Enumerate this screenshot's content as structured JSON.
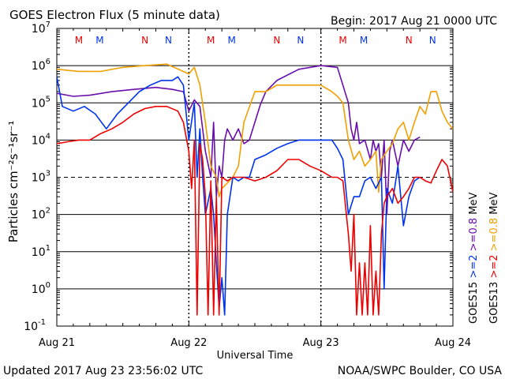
{
  "header": {
    "title": "GOES Electron Flux (5 minute data)",
    "begin": "Begin: 2017 Aug 21 0000 UTC"
  },
  "footer": {
    "updated": "Updated 2017 Aug 23 23:56:02 UTC",
    "credit": "NOAA/SWPC Boulder, CO USA"
  },
  "colors": {
    "goes15_gt08": "#6a0dad",
    "goes13_gt08": "#f0a000",
    "goes15_gt2": "#0033ee",
    "goes13_gt2": "#ee0000",
    "grid": "#000000",
    "mn_red": "#ee0000",
    "mn_blue": "#0033ee"
  },
  "chart_data": {
    "type": "line",
    "title": "GOES Electron Flux (5 minute data)",
    "xlabel": "Universal Time",
    "ylabel": "Particles cm⁻²s⁻¹sr⁻¹",
    "yscale": "log",
    "ylim": [
      0.1,
      10000000
    ],
    "yticks": [
      {
        "label": "10",
        "exp": "7"
      },
      {
        "label": "10",
        "exp": "6"
      },
      {
        "label": "10",
        "exp": "5"
      },
      {
        "label": "10",
        "exp": "4"
      },
      {
        "label": "10",
        "exp": "3"
      },
      {
        "label": "10",
        "exp": "2"
      },
      {
        "label": "10",
        "exp": "1"
      },
      {
        "label": "10",
        "exp": "0"
      },
      {
        "label": "10",
        "exp": "-1"
      }
    ],
    "xlim": [
      0,
      72
    ],
    "xtick_labels": [
      "Aug 21",
      "Aug 22",
      "Aug 23",
      "Aug 24"
    ],
    "threshold": 1000,
    "markers": [
      {
        "label": "M",
        "x": 4.0,
        "color": "red"
      },
      {
        "label": "M",
        "x": 7.8,
        "color": "blue"
      },
      {
        "label": "N",
        "x": 16.0,
        "color": "red"
      },
      {
        "label": "N",
        "x": 20.3,
        "color": "blue"
      },
      {
        "label": "M",
        "x": 28.0,
        "color": "red"
      },
      {
        "label": "M",
        "x": 31.8,
        "color": "blue"
      },
      {
        "label": "N",
        "x": 40.0,
        "color": "red"
      },
      {
        "label": "N",
        "x": 44.3,
        "color": "blue"
      },
      {
        "label": "M",
        "x": 52.0,
        "color": "red"
      },
      {
        "label": "M",
        "x": 55.8,
        "color": "blue"
      },
      {
        "label": "N",
        "x": 64.0,
        "color": "red"
      },
      {
        "label": "N",
        "x": 68.3,
        "color": "blue"
      }
    ],
    "legend": [
      {
        "sat": "GOES15",
        "energy": ">=2",
        "unit": "",
        "color": "blue"
      },
      {
        "sat": "GOES15",
        "energy": ">=0.8",
        "unit": "MeV",
        "color": "purple"
      },
      {
        "sat": "GOES13",
        "energy": ">=2",
        "unit": "",
        "color": "red"
      },
      {
        "sat": "GOES13",
        "energy": ">=0.8",
        "unit": "MeV",
        "color": "orange"
      }
    ],
    "series": [
      {
        "color_key": "goes15_gt08",
        "x": [
          0,
          3,
          6,
          10,
          14,
          18,
          21,
          23,
          24,
          25,
          26,
          27,
          28,
          28.5,
          29,
          29.5,
          30,
          30.5,
          31,
          32,
          33,
          34,
          35,
          36,
          37,
          38,
          40,
          44,
          48,
          51,
          53,
          53.5,
          54,
          54.5,
          55,
          56,
          57,
          57.5,
          58,
          58.5,
          59,
          59.5,
          60,
          60.5,
          61,
          62,
          63,
          64,
          65,
          66
        ],
        "y": [
          180000,
          150000,
          160000,
          200000,
          230000,
          260000,
          230000,
          200000,
          60000,
          120000,
          80000,
          5000,
          1000,
          30000,
          300,
          2000,
          1000,
          10000,
          20000,
          10000,
          20000,
          8000,
          10000,
          30000,
          90000,
          200000,
          400000,
          800000,
          1000000,
          900000,
          100000,
          20000,
          10000,
          30000,
          8000,
          10000,
          3000,
          10000,
          5000,
          8000,
          1000,
          10000,
          100,
          5000,
          10000,
          2000,
          10000,
          5000,
          10000,
          12000
        ]
      },
      {
        "color_key": "goes13_gt08",
        "x": [
          0,
          4,
          8,
          12,
          16,
          20,
          24,
          25,
          26,
          27,
          28,
          29,
          29.5,
          30,
          31,
          32,
          33,
          34,
          36,
          38,
          40,
          42,
          44,
          46,
          48,
          50,
          51,
          52,
          53,
          54,
          55,
          56,
          57,
          58,
          58.5,
          59,
          60,
          61,
          62,
          63,
          64,
          65,
          66,
          67,
          68,
          69,
          70,
          71,
          72
        ],
        "y": [
          800000,
          700000,
          700000,
          900000,
          1000000,
          1100000,
          600000,
          900000,
          300000,
          30000,
          2000,
          1000,
          300,
          500,
          700,
          1000,
          2000,
          30000,
          200000,
          200000,
          300000,
          300000,
          300000,
          300000,
          300000,
          200000,
          150000,
          100000,
          10000,
          3000,
          5000,
          2000,
          3000,
          5000,
          400,
          3000,
          5000,
          8000,
          20000,
          30000,
          10000,
          30000,
          80000,
          50000,
          200000,
          200000,
          60000,
          30000,
          20000
        ]
      },
      {
        "color_key": "goes15_gt2",
        "x": [
          0,
          1,
          3,
          5,
          7,
          9,
          11,
          13,
          15,
          17,
          19,
          21,
          22,
          23,
          24,
          25,
          25.5,
          26,
          26.5,
          27,
          28,
          28.5,
          29,
          29.5,
          30,
          30.5,
          31,
          32,
          33,
          34,
          35,
          36,
          38,
          40,
          42,
          44,
          46,
          48,
          50,
          51,
          52,
          53,
          54,
          55,
          56,
          57,
          58,
          59,
          59.5,
          60,
          61,
          62,
          63,
          64,
          65,
          66
        ],
        "y": [
          500000,
          80000,
          60000,
          80000,
          50000,
          20000,
          50000,
          100000,
          200000,
          300000,
          400000,
          400000,
          500000,
          300000,
          10000,
          100000,
          1000,
          20000,
          1000,
          100,
          500,
          100,
          5,
          0.3,
          2,
          0.2,
          100,
          1000,
          800,
          1000,
          1000,
          3000,
          4000,
          6000,
          8000,
          10000,
          10000,
          10000,
          10000,
          6000,
          3000,
          100,
          300,
          300,
          800,
          1000,
          500,
          1000,
          1,
          500,
          200,
          2000,
          50,
          300,
          800,
          1000
        ]
      },
      {
        "color_key": "goes13_gt2",
        "x": [
          0,
          2,
          4,
          6,
          8,
          10,
          12,
          14,
          16,
          18,
          20,
          22,
          23,
          24,
          24.5,
          25,
          25.5,
          26,
          26.5,
          27,
          27.5,
          28,
          28.5,
          29,
          29.5,
          30,
          31,
          32,
          34,
          36,
          38,
          40,
          42,
          44,
          46,
          48,
          50,
          51,
          52,
          53,
          53.5,
          54,
          54.5,
          55,
          55.5,
          56,
          56.5,
          57,
          57.5,
          58,
          58.5,
          59,
          59.5,
          60,
          61,
          62,
          63,
          64,
          65,
          66,
          67,
          68,
          69,
          70,
          71,
          72
        ],
        "y": [
          8000,
          9000,
          10000,
          10000,
          15000,
          20000,
          30000,
          50000,
          70000,
          80000,
          80000,
          60000,
          30000,
          5000,
          500,
          10000,
          0.2,
          8000,
          3000,
          300,
          0.2,
          800,
          0.2,
          300,
          0.2,
          1000,
          800,
          1000,
          1000,
          800,
          1000,
          1500,
          3000,
          3000,
          2000,
          1500,
          1000,
          1000,
          800,
          30,
          3,
          100,
          0.2,
          5,
          0.2,
          5,
          0.2,
          50,
          0.2,
          3,
          0.2,
          30,
          200,
          300,
          500,
          200,
          300,
          500,
          1000,
          1000,
          800,
          700,
          1500,
          3000,
          2000,
          400
        ]
      }
    ]
  }
}
